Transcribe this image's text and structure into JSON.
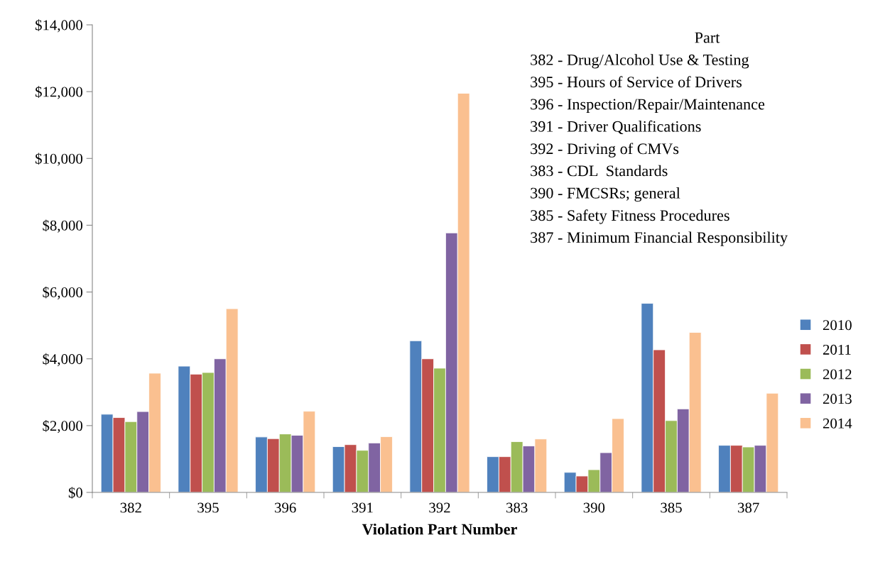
{
  "chart_data": {
    "type": "bar",
    "xlabel": "Violation Part Number",
    "categories": [
      "382",
      "395",
      "396",
      "391",
      "392",
      "383",
      "390",
      "385",
      "387"
    ],
    "series": [
      {
        "name": "2010",
        "color": "#4f81bd",
        "values": [
          2340,
          3780,
          1660,
          1370,
          4540,
          1070,
          600,
          5660,
          1410
        ]
      },
      {
        "name": "2011",
        "color": "#c0504d",
        "values": [
          2240,
          3540,
          1610,
          1430,
          4000,
          1070,
          490,
          4270,
          1410
        ]
      },
      {
        "name": "2012",
        "color": "#9bbb59",
        "values": [
          2120,
          3590,
          1750,
          1260,
          3720,
          1520,
          680,
          2150,
          1360
        ]
      },
      {
        "name": "2013",
        "color": "#8064a2",
        "values": [
          2420,
          4000,
          1710,
          1480,
          7770,
          1390,
          1190,
          2500,
          1410
        ]
      },
      {
        "name": "2014",
        "color": "#fac090",
        "values": [
          3570,
          5500,
          2430,
          1670,
          11950,
          1600,
          2210,
          4790,
          2970
        ]
      }
    ],
    "ylim": [
      0,
      14000
    ],
    "yticks": [
      {
        "value": 0,
        "label": "$0"
      },
      {
        "value": 2000,
        "label": "$2,000"
      },
      {
        "value": 4000,
        "label": "$4,000"
      },
      {
        "value": 6000,
        "label": "$6,000"
      },
      {
        "value": 8000,
        "label": "$8,000"
      },
      {
        "value": 10000,
        "label": "$10,000"
      },
      {
        "value": 12000,
        "label": "$12,000"
      },
      {
        "value": 14000,
        "label": "$14,000"
      }
    ],
    "grid": false,
    "legend": "right",
    "annotations": [
      "Part",
      "382 - Drug/Alcohol Use & Testing",
      "395 - Hours of Service of Drivers",
      "396 - Inspection/Repair/Maintenance",
      "391 - Driver Qualifications",
      "392 - Driving of CMVs",
      "383 - CDL  Standards",
      "390 - FMCSRs; general",
      "385 - Safety Fitness Procedures",
      "387 - Minimum Financial Responsibility"
    ]
  }
}
